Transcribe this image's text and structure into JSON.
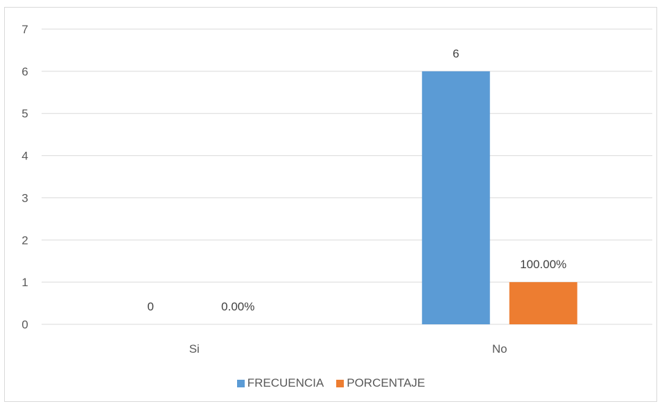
{
  "chart_data": {
    "type": "bar",
    "categories": [
      "Si",
      "No"
    ],
    "series": [
      {
        "name": "FRECUENCIA",
        "values": [
          0,
          6
        ],
        "labels": [
          "0",
          "6"
        ],
        "color": "#5b9bd5"
      },
      {
        "name": "PORCENTAJE",
        "values": [
          0,
          1
        ],
        "labels": [
          "0.00%",
          "100.00%"
        ],
        "color": "#ed7d31"
      }
    ],
    "ylim": [
      0,
      7
    ],
    "yticks": [
      "0",
      "1",
      "2",
      "3",
      "4",
      "5",
      "6",
      "7"
    ],
    "grid": true,
    "legend_position": "bottom",
    "title": "",
    "xlabel": "",
    "ylabel": ""
  }
}
